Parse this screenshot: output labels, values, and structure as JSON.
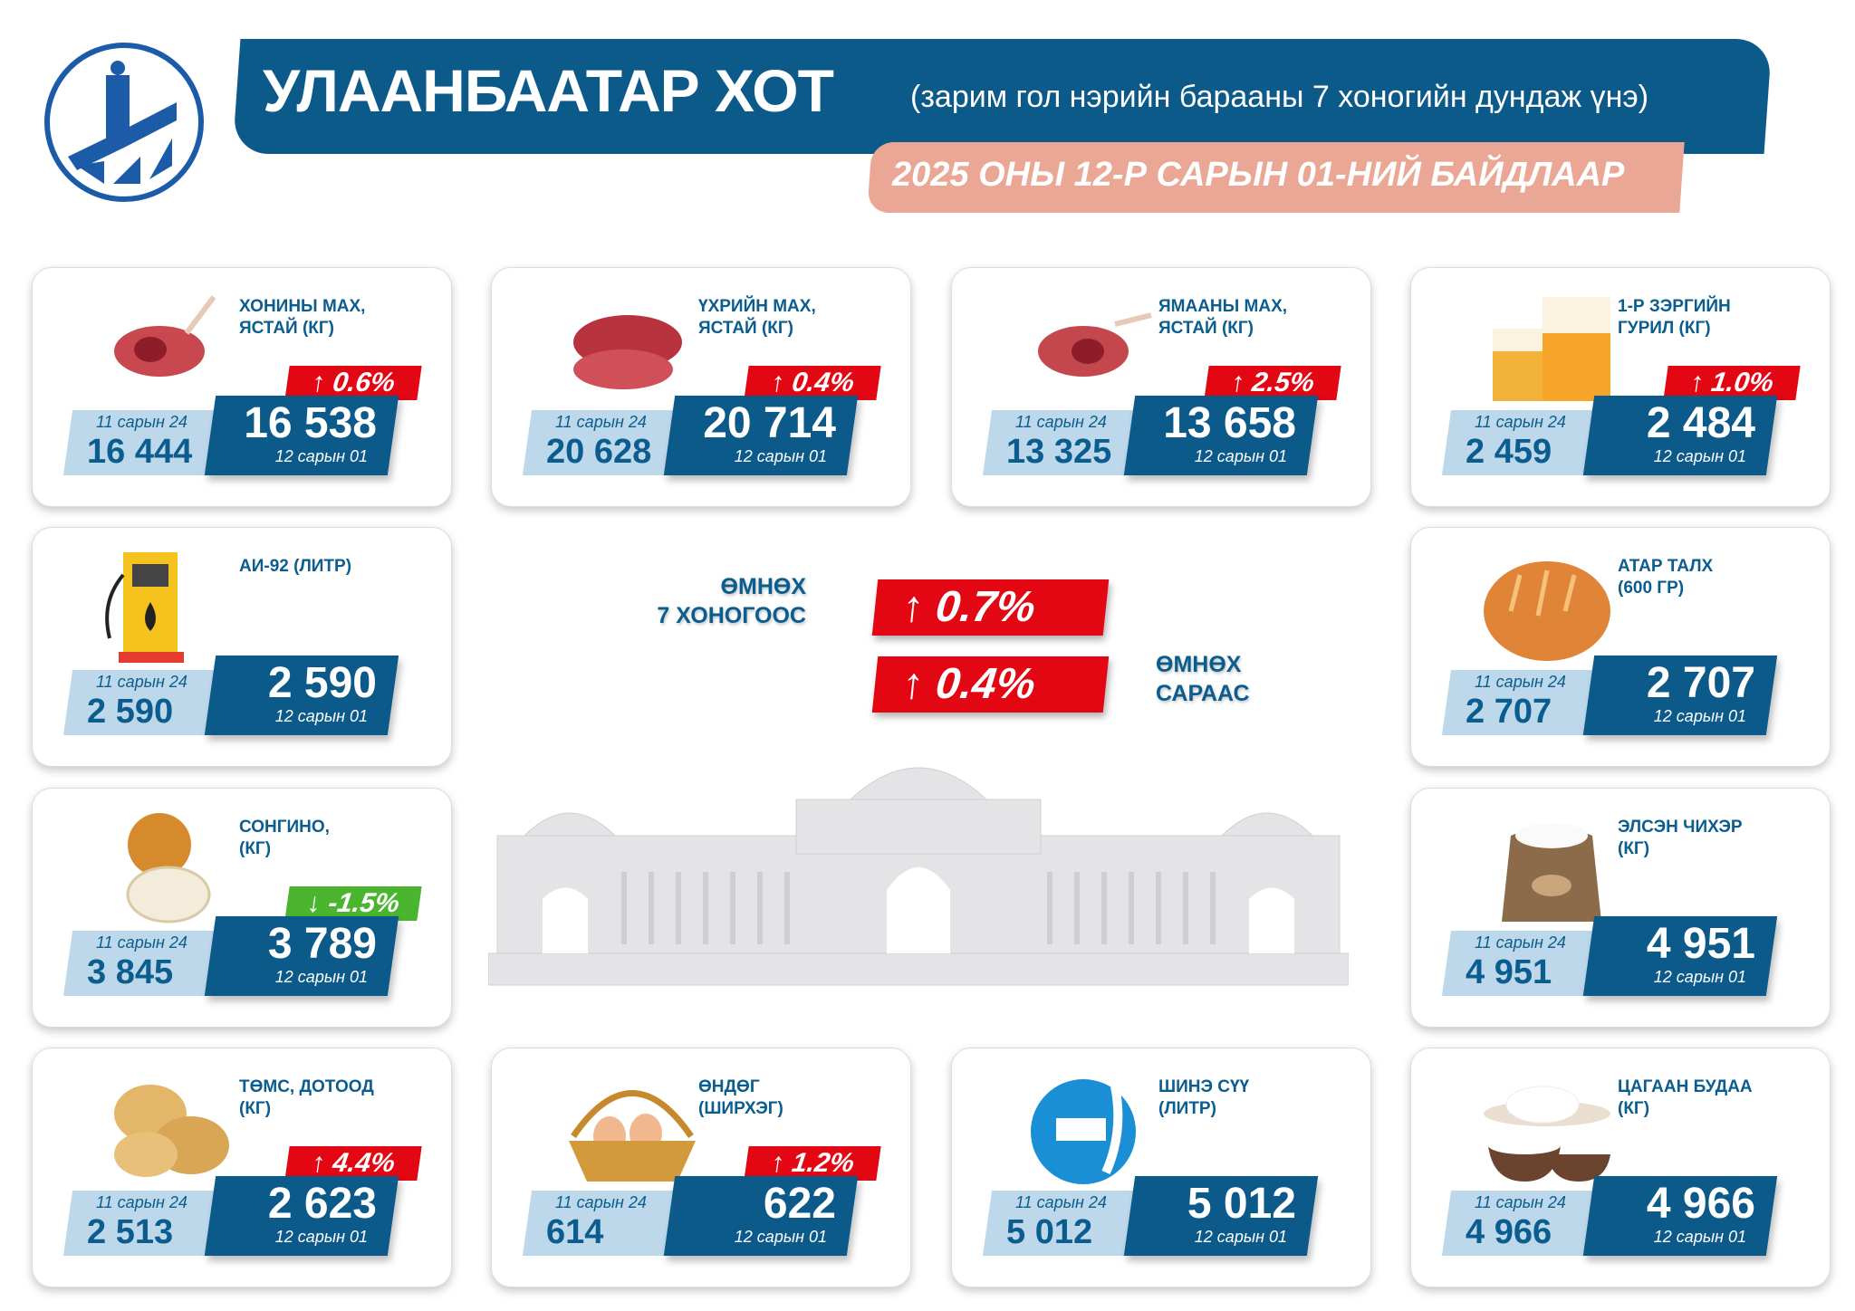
{
  "header": {
    "title": "УЛААНБААТАР ХОТ",
    "subtitle": "(зарим гол нэрийн барааны 7 хоногийн дундаж үнэ)",
    "date": "2025 ОНЫ 12-Р САРЫН 01-НИЙ БАЙДЛААР"
  },
  "colors": {
    "primary": "#0b5a8a",
    "light": "#bcd8ea",
    "up": "#e30613",
    "down": "#4cb52f",
    "date_bar": "#eaa795"
  },
  "labels": {
    "prev": "11 сарын 24",
    "curr": "12 сарын 01"
  },
  "summary": {
    "week_label": "ӨМНӨХ\n7 ХОНОГООС",
    "week_change": "↑ 0.7%",
    "month_label": "ӨМНӨХ\nСАРААС",
    "month_change": "↑ 0.4%"
  },
  "items": [
    {
      "title": "ХОНИНЫ МАХ,\nЯСТАЙ (КГ)",
      "icon": "lamb-meat-icon",
      "prev": "16 444",
      "curr": "16 538",
      "change": "↑ 0.6%",
      "dir": "up"
    },
    {
      "title": "ҮХРИЙН МАХ,\nЯСТАЙ (КГ)",
      "icon": "beef-icon",
      "prev": "20 628",
      "curr": "20 714",
      "change": "↑ 0.4%",
      "dir": "up"
    },
    {
      "title": "ЯМААНЫ МАХ,\nЯСТАЙ (КГ)",
      "icon": "goat-meat-icon",
      "prev": "13 325",
      "curr": "13 658",
      "change": "↑ 2.5%",
      "dir": "up"
    },
    {
      "title": "1-Р ЗЭРГИЙН\nГУРИЛ (КГ)",
      "icon": "flour-icon",
      "prev": "2 459",
      "curr": "2 484",
      "change": "↑ 1.0%",
      "dir": "up"
    },
    {
      "title": "АИ-92 (ЛИТР)",
      "icon": "fuel-pump-icon",
      "prev": "2 590",
      "curr": "2 590",
      "change": "",
      "dir": "none"
    },
    {
      "title": "АТАР ТАЛХ\n(600 ГР)",
      "icon": "bread-icon",
      "prev": "2 707",
      "curr": "2 707",
      "change": "",
      "dir": "none"
    },
    {
      "title": "СОНГИНО,\n(КГ)",
      "icon": "onion-icon",
      "prev": "3 845",
      "curr": "3 789",
      "change": "↓ -1.5%",
      "dir": "down"
    },
    {
      "title": "ЭЛСЭН ЧИХЭР\n(КГ)",
      "icon": "sugar-sack-icon",
      "prev": "4 951",
      "curr": "4 951",
      "change": "",
      "dir": "none"
    },
    {
      "title": "ТӨМС, ДОТООД\n(КГ)",
      "icon": "potato-icon",
      "prev": "2 513",
      "curr": "2 623",
      "change": "↑ 4.4%",
      "dir": "up"
    },
    {
      "title": "ӨНДӨГ\n(ШИРХЭГ)",
      "icon": "eggs-basket-icon",
      "prev": "614",
      "curr": "622",
      "change": "↑ 1.2%",
      "dir": "up"
    },
    {
      "title": "ШИНЭ СҮҮ\n(ЛИТР)",
      "icon": "milk-icon",
      "prev": "5 012",
      "curr": "5 012",
      "change": "",
      "dir": "none"
    },
    {
      "title": "ЦАГААН БУДАА\n(КГ)",
      "icon": "rice-icon",
      "prev": "4 966",
      "curr": "4 966",
      "change": "",
      "dir": "none"
    }
  ]
}
